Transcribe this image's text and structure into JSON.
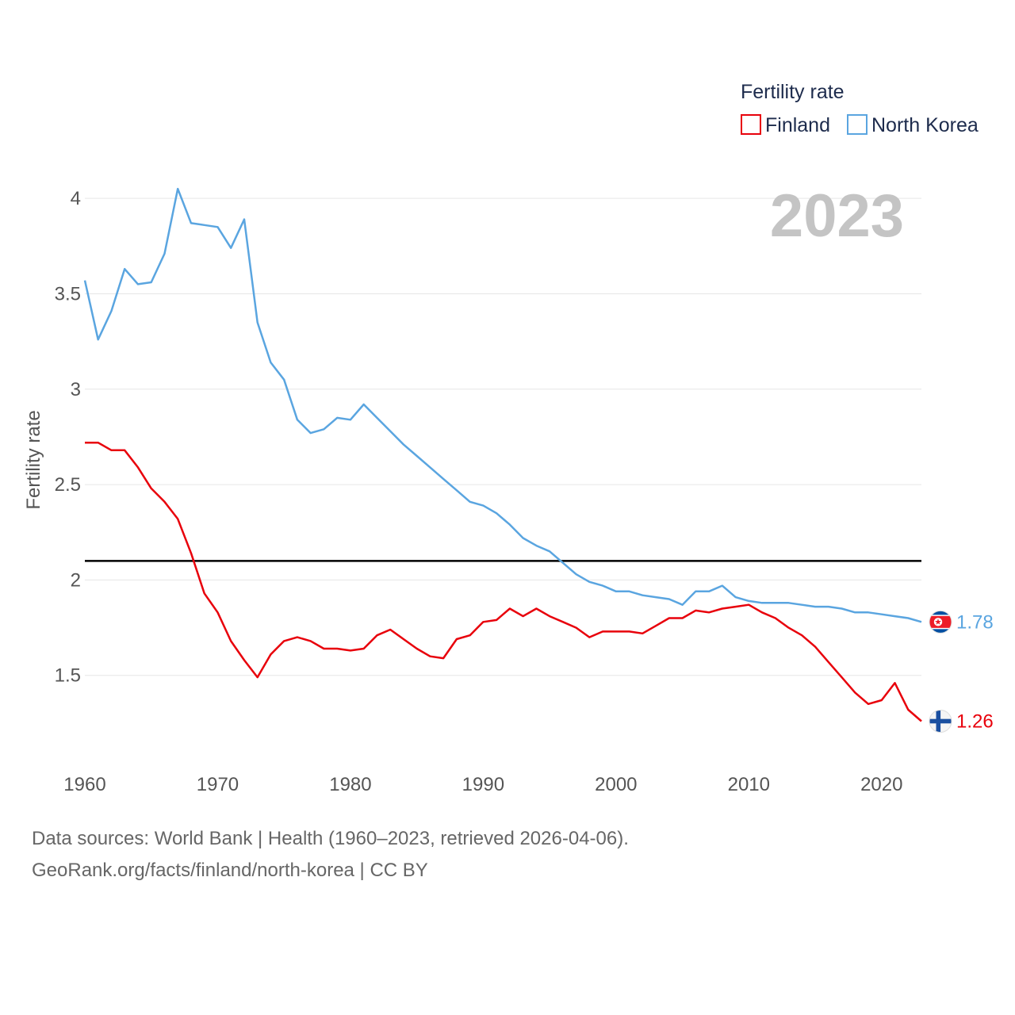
{
  "chart_data": {
    "type": "line",
    "title": "",
    "year_label": "2023",
    "xlabel": "",
    "ylabel": "Fertility rate",
    "xlim": [
      1960,
      2023
    ],
    "ylim": [
      1.05,
      4.25
    ],
    "x_ticks": [
      1960,
      1970,
      1980,
      1990,
      2000,
      2010,
      2020
    ],
    "x_tick_labels": [
      "1960",
      "1970",
      "1980",
      "1990",
      "2000",
      "2010",
      "2020"
    ],
    "y_ticks": [
      1.5,
      2,
      2.5,
      3,
      3.5,
      4
    ],
    "y_tick_labels": [
      "1.5",
      "2",
      "2.5",
      "3",
      "3.5",
      "4"
    ],
    "grid": true,
    "legend": {
      "title": "Fertility rate",
      "position": "top-right",
      "entries": [
        {
          "name": "Finland",
          "color": "#e8000b"
        },
        {
          "name": "North Korea",
          "color": "#5aa5e0"
        }
      ]
    },
    "reference_line": {
      "value": 2.1,
      "color": "#000000"
    },
    "x": [
      1960,
      1961,
      1962,
      1963,
      1964,
      1965,
      1966,
      1967,
      1968,
      1969,
      1970,
      1971,
      1972,
      1973,
      1974,
      1975,
      1976,
      1977,
      1978,
      1979,
      1980,
      1981,
      1982,
      1983,
      1984,
      1985,
      1986,
      1987,
      1988,
      1989,
      1990,
      1991,
      1992,
      1993,
      1994,
      1995,
      1996,
      1997,
      1998,
      1999,
      2000,
      2001,
      2002,
      2003,
      2004,
      2005,
      2006,
      2007,
      2008,
      2009,
      2010,
      2011,
      2012,
      2013,
      2014,
      2015,
      2016,
      2017,
      2018,
      2019,
      2020,
      2021,
      2022,
      2023
    ],
    "series": [
      {
        "name": "Finland",
        "color": "#e8000b",
        "end_label": "1.26",
        "values": [
          2.72,
          2.72,
          2.68,
          2.68,
          2.59,
          2.48,
          2.41,
          2.32,
          2.14,
          1.93,
          1.83,
          1.68,
          1.58,
          1.49,
          1.61,
          1.68,
          1.7,
          1.68,
          1.64,
          1.64,
          1.63,
          1.64,
          1.71,
          1.74,
          1.69,
          1.64,
          1.6,
          1.59,
          1.69,
          1.71,
          1.78,
          1.79,
          1.85,
          1.81,
          1.85,
          1.81,
          1.78,
          1.75,
          1.7,
          1.73,
          1.73,
          1.73,
          1.72,
          1.76,
          1.8,
          1.8,
          1.84,
          1.83,
          1.85,
          1.86,
          1.87,
          1.83,
          1.8,
          1.75,
          1.71,
          1.65,
          1.57,
          1.49,
          1.41,
          1.35,
          1.37,
          1.46,
          1.32,
          1.26
        ]
      },
      {
        "name": "North Korea",
        "color": "#5aa5e0",
        "end_label": "1.78",
        "values": [
          3.57,
          3.26,
          3.41,
          3.63,
          3.55,
          3.56,
          3.71,
          4.05,
          3.87,
          3.86,
          3.85,
          3.74,
          3.89,
          3.35,
          3.14,
          3.05,
          2.84,
          2.77,
          2.79,
          2.85,
          2.84,
          2.92,
          2.85,
          2.78,
          2.71,
          2.65,
          2.59,
          2.53,
          2.47,
          2.41,
          2.39,
          2.35,
          2.29,
          2.22,
          2.18,
          2.15,
          2.09,
          2.03,
          1.99,
          1.97,
          1.94,
          1.94,
          1.92,
          1.91,
          1.9,
          1.87,
          1.94,
          1.94,
          1.97,
          1.91,
          1.89,
          1.88,
          1.88,
          1.88,
          1.87,
          1.86,
          1.86,
          1.85,
          1.83,
          1.83,
          1.82,
          1.81,
          1.8,
          1.78
        ]
      }
    ]
  },
  "footer": {
    "line1": "Data sources: World Bank | Health (1960–2023, retrieved 2026-04-06).",
    "line2": "GeoRank.org/facts/finland/north-korea | CC BY"
  }
}
